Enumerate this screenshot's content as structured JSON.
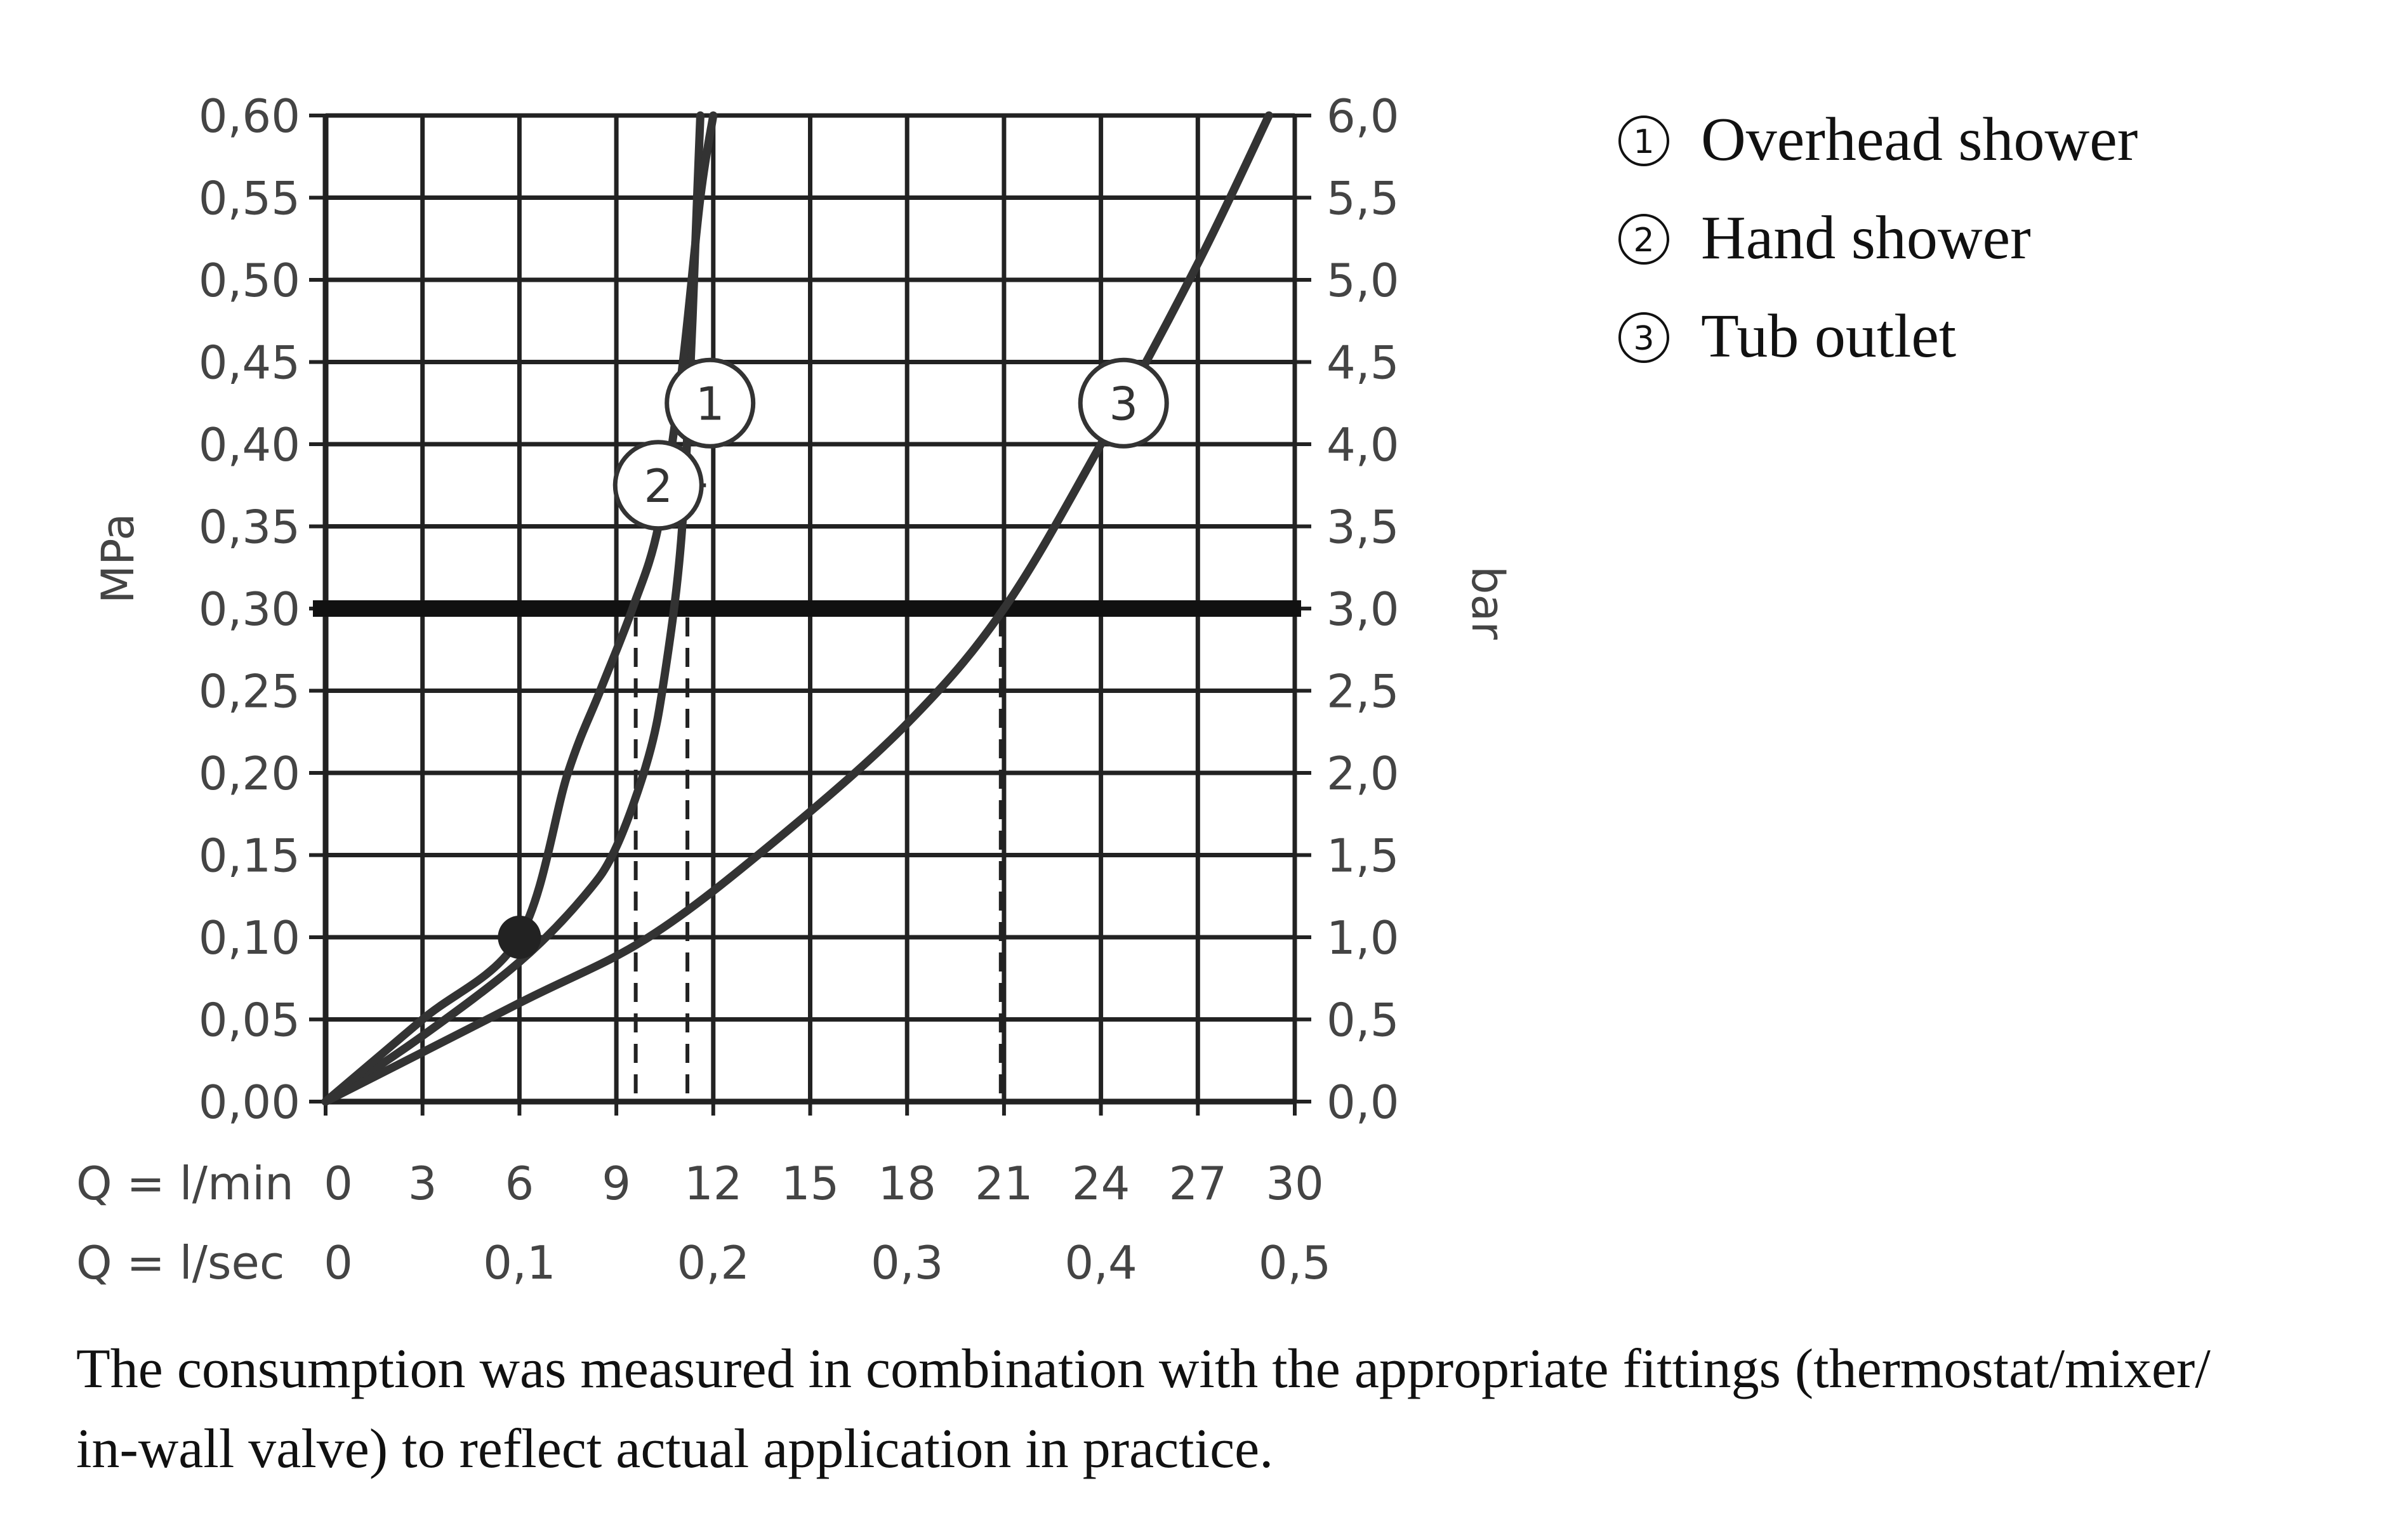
{
  "chart_data": {
    "type": "line",
    "y_left": {
      "label": "MPa",
      "min": 0,
      "max": 0.6,
      "ticks": [
        0,
        0.05,
        0.1,
        0.15,
        0.2,
        0.25,
        0.3,
        0.35,
        0.4,
        0.45,
        0.5,
        0.55,
        0.6
      ],
      "tick_labels": [
        "0,00",
        "0,05",
        "0,10",
        "0,15",
        "0,20",
        "0,25",
        "0,30",
        "0,35",
        "0,40",
        "0,45",
        "0,50",
        "0,55",
        "0,60"
      ]
    },
    "y_right": {
      "label": "bar",
      "tick_labels": [
        "0,0",
        "0,5",
        "1,0",
        "1,5",
        "2,0",
        "2,5",
        "3,0",
        "3,5",
        "4,0",
        "4,5",
        "5,0",
        "5,5",
        "6,0"
      ]
    },
    "x": {
      "min": 0,
      "max": 30,
      "ticks": [
        0,
        3,
        6,
        9,
        12,
        15,
        18,
        21,
        24,
        27,
        30
      ],
      "row1_label": "Q = l/min",
      "row1_tick_labels": [
        "0",
        "3",
        "6",
        "9",
        "12",
        "15",
        "18",
        "21",
        "24",
        "27",
        "30"
      ],
      "row2_label": "Q = l/sec",
      "row2_ticks": [
        0,
        6,
        12,
        18,
        24,
        30
      ],
      "row2_tick_labels": [
        "0",
        "0,1",
        "0,2",
        "0,3",
        "0,4",
        "0,5"
      ]
    },
    "grid": true,
    "reference_line": {
      "y": 0.3
    },
    "marker_point": {
      "x": 6,
      "y": 0.1
    },
    "series": [
      {
        "name": "1",
        "points": [
          [
            0,
            0
          ],
          [
            3,
            0.04
          ],
          [
            6,
            0.085
          ],
          [
            8,
            0.125
          ],
          [
            9,
            0.155
          ],
          [
            10,
            0.21
          ],
          [
            10.5,
            0.26
          ],
          [
            11,
            0.34
          ],
          [
            11.3,
            0.45
          ],
          [
            11.5,
            0.55
          ],
          [
            11.6,
            0.6
          ]
        ],
        "drop_x": 11.2,
        "callout": {
          "x": 11.9,
          "y": 0.425
        }
      },
      {
        "name": "2",
        "points": [
          [
            0,
            0
          ],
          [
            3,
            0.05
          ],
          [
            6,
            0.1
          ],
          [
            7.5,
            0.2
          ],
          [
            8.5,
            0.25
          ],
          [
            9.5,
            0.3
          ],
          [
            10.3,
            0.35
          ],
          [
            11,
            0.44
          ],
          [
            11.6,
            0.55
          ],
          [
            12,
            0.6
          ]
        ],
        "drop_x": 9.6,
        "callout": {
          "x": 10.3,
          "y": 0.375
        }
      },
      {
        "name": "3",
        "points": [
          [
            0,
            0
          ],
          [
            6,
            0.06
          ],
          [
            10,
            0.1
          ],
          [
            14,
            0.16
          ],
          [
            18,
            0.23
          ],
          [
            21,
            0.3
          ],
          [
            24,
            0.4
          ],
          [
            27,
            0.51
          ],
          [
            29.2,
            0.6
          ]
        ],
        "drop_x": 20.9,
        "callout": {
          "x": 24.7,
          "y": 0.425
        }
      }
    ]
  },
  "legend": [
    {
      "num": "1",
      "label": "Overhead shower"
    },
    {
      "num": "2",
      "label": "Hand shower"
    },
    {
      "num": "3",
      "label": "Tub outlet"
    }
  ],
  "note": {
    "line1": "The consumption was measured in combination with the appropriate fittings (thermostat/mixer/",
    "line2": "in-wall valve) to reflect actual application in practice."
  }
}
